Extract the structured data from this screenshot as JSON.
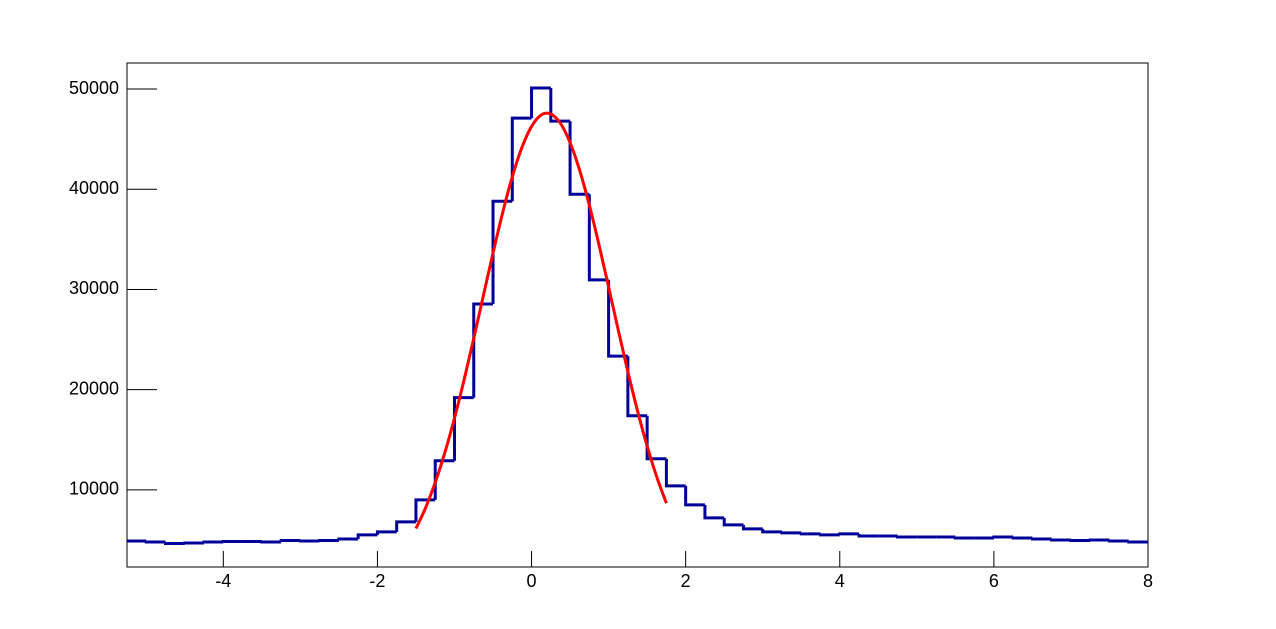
{
  "chart_data": {
    "type": "histogram",
    "bins": [
      -5.25,
      -5,
      -4.75,
      -4.5,
      -4.25,
      -4,
      -3.75,
      -3.5,
      -3.25,
      -3,
      -2.75,
      -2.5,
      -2.25,
      -2,
      -1.75,
      -1.5,
      -1.25,
      -1,
      -0.75,
      -0.5,
      -0.25,
      0,
      0.25,
      0.5,
      0.75,
      1,
      1.25,
      1.5,
      1.75,
      2,
      2.25,
      2.5,
      2.75,
      3,
      3.25,
      3.5,
      3.75,
      4,
      4.25,
      4.5,
      4.75,
      5,
      5.25,
      5.5,
      5.75,
      6,
      6.25,
      6.5,
      6.75,
      7,
      7.25,
      7.5,
      7.75,
      8
    ],
    "values": [
      4900,
      4800,
      4650,
      4700,
      4800,
      4850,
      4850,
      4800,
      4950,
      4900,
      4950,
      5100,
      5500,
      5800,
      6800,
      9000,
      12900,
      19200,
      28550,
      38800,
      47100,
      50100,
      46800,
      39500,
      30950,
      23350,
      17400,
      13100,
      10400,
      8500,
      7200,
      6500,
      6100,
      5800,
      5700,
      5600,
      5500,
      5600,
      5400,
      5400,
      5300,
      5300,
      5300,
      5200,
      5200,
      5300,
      5200,
      5100,
      5000,
      4950,
      5000,
      4900,
      4800
    ],
    "color": "#000099",
    "fit": {
      "x": [
        -1.5,
        -1.375,
        -1.25,
        -1.125,
        -1,
        -0.875,
        -0.75,
        -0.625,
        -0.5,
        -0.375,
        -0.25,
        -0.125,
        0,
        0.125,
        0.25,
        0.375,
        0.5,
        0.625,
        0.75,
        0.875,
        1,
        1.125,
        1.25,
        1.375,
        1.5,
        1.625,
        1.75
      ],
      "values": [
        6140,
        8210,
        10730,
        13720,
        17160,
        20990,
        25110,
        29390,
        33640,
        37660,
        41240,
        44170,
        46270,
        47410,
        47510,
        46580,
        44660,
        41880,
        38410,
        34460,
        30250,
        25960,
        21790,
        17900,
        14370,
        11290,
        8670
      ],
      "color": "#ff0000"
    },
    "xlim": [
      -5.25,
      8
    ],
    "xticks": [
      -4,
      -2,
      0,
      2,
      4,
      6,
      8
    ],
    "ylim": [
      2300,
      52600
    ],
    "yticks": [
      10000,
      20000,
      30000,
      40000,
      50000
    ]
  }
}
